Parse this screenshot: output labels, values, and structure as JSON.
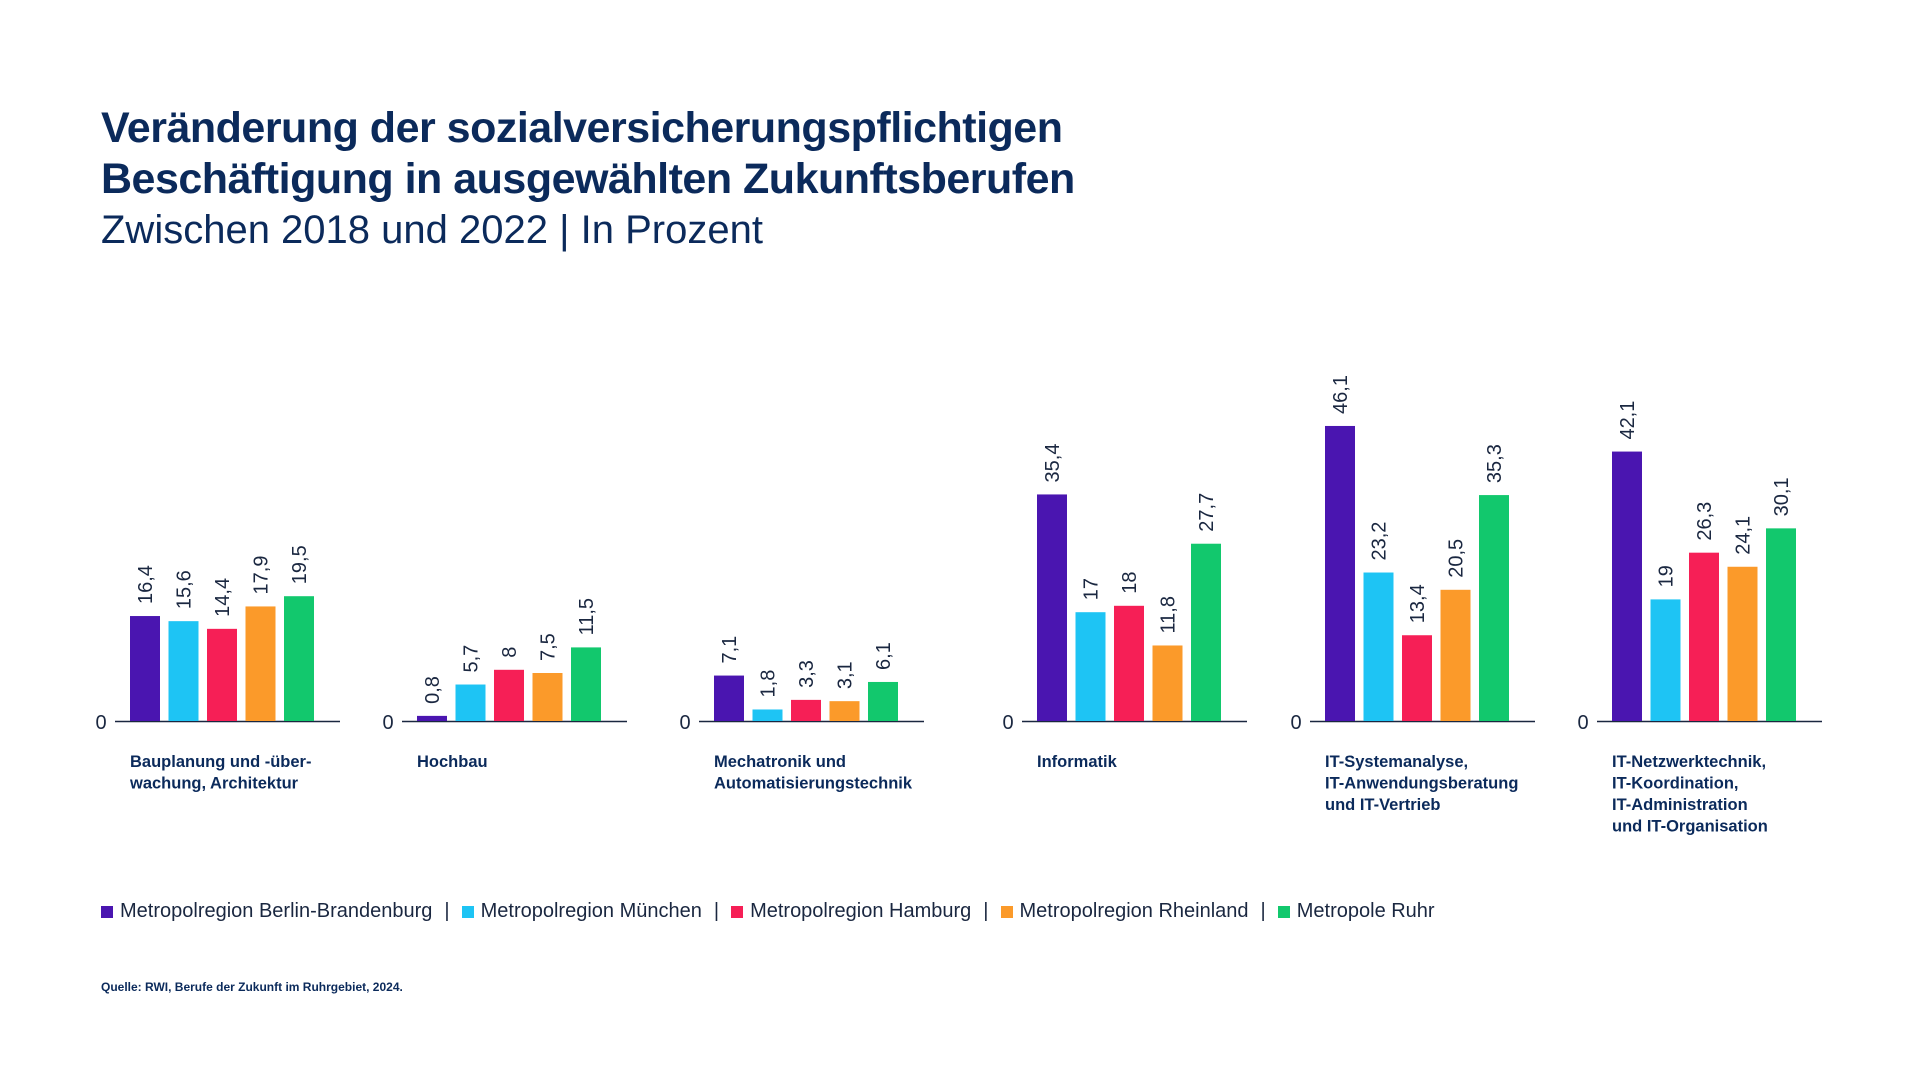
{
  "title_line1": "Veränderung der sozialversicherungspflichtigen",
  "title_line2": "Beschäftigung in ausgewählten Zukunftsberufen",
  "subtitle": "Zwischen 2018 und 2022 | In Prozent",
  "source": "Quelle: RWI, Berufe der Zukunft im Ruhrgebiet, 2024.",
  "legend_separator": "|",
  "chart_data": {
    "type": "bar",
    "title": "Veränderung der sozialversicherungspflichtigen Beschäftigung in ausgewählten Zukunftsberufen",
    "subtitle": "Zwischen 2018 und 2022 | In Prozent",
    "baseline_label": "0",
    "legend_placement": "bottom",
    "grid": false,
    "ylim": [
      0,
      50
    ],
    "series": [
      {
        "name": "Metropolregion Berlin-Brandenburg",
        "color": "#4a15b0"
      },
      {
        "name": "Metropolregion München",
        "color": "#1ec4f4"
      },
      {
        "name": "Metropolregion Hamburg",
        "color": "#f61f56"
      },
      {
        "name": "Metropolregion Rheinland",
        "color": "#fb9a2a"
      },
      {
        "name": "Metropole Ruhr",
        "color": "#12c86d"
      }
    ],
    "groups": [
      {
        "label_lines": [
          "Bauplanung und -über-",
          "wachung, Architektur"
        ],
        "values": [
          16.4,
          15.6,
          14.4,
          17.9,
          19.5
        ],
        "labels": [
          "16,4",
          "15,6",
          "14,4",
          "17,9",
          "19,5"
        ]
      },
      {
        "label_lines": [
          "Hochbau"
        ],
        "values": [
          0.8,
          5.7,
          8,
          7.5,
          11.5
        ],
        "labels": [
          "0,8",
          "5,7",
          "8",
          "7,5",
          "11,5"
        ]
      },
      {
        "label_lines": [
          "Mechatronik und",
          "Automatisierungstechnik"
        ],
        "values": [
          7.1,
          1.8,
          3.3,
          3.1,
          6.1
        ],
        "labels": [
          "7,1",
          "1,8",
          "3,3",
          "3,1",
          "6,1"
        ]
      },
      {
        "label_lines": [
          "Informatik"
        ],
        "values": [
          35.4,
          17,
          18,
          11.8,
          27.7
        ],
        "labels": [
          "35,4",
          "17",
          "18",
          "11,8",
          "27,7"
        ]
      },
      {
        "label_lines": [
          "IT-Systemanalyse,",
          "IT-Anwendungsberatung",
          "und IT-Vertrieb"
        ],
        "values": [
          46.1,
          23.2,
          13.4,
          20.5,
          35.3
        ],
        "labels": [
          "46,1",
          "23,2",
          "13,4",
          "20,5",
          "35,3"
        ]
      },
      {
        "label_lines": [
          "IT-Netzwerktechnik,",
          "IT-Koordination,",
          "IT-Administration",
          "und IT-Organisation"
        ],
        "values": [
          42.1,
          19,
          26.3,
          24.1,
          30.1
        ],
        "labels": [
          "42,1",
          "19",
          "26,3",
          "24,1",
          "30,1"
        ]
      }
    ]
  }
}
